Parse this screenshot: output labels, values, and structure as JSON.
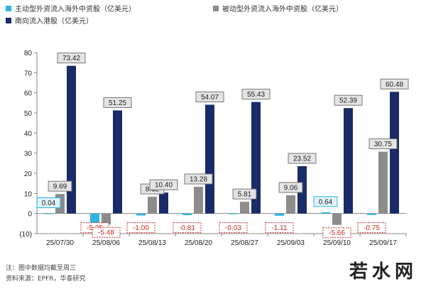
{
  "chart_data": {
    "type": "bar",
    "categories": [
      "25/07/30",
      "25/08/06",
      "25/08/13",
      "25/08/20",
      "25/08/27",
      "25/09/03",
      "25/09/10",
      "25/09/17"
    ],
    "series": [
      {
        "name": "主动型外资流入海外中资股（亿美元）",
        "color": "#29b6e6",
        "values": [
          0.04,
          -5.35,
          -1.0,
          -0.81,
          -0.03,
          -1.11,
          0.64,
          -0.75
        ]
      },
      {
        "name": "被动型外资流入海外中资股（亿美元）",
        "color": "#8c8c8c",
        "values": [
          9.69,
          -5.48,
          8.32,
          13.28,
          5.81,
          9.06,
          -5.66,
          30.75
        ]
      },
      {
        "name": "南向流入港股（亿美元）",
        "color": "#1a2b6b",
        "values": [
          73.42,
          51.25,
          10.4,
          54.07,
          55.43,
          23.52,
          52.39,
          60.48
        ]
      }
    ],
    "yticks": [
      "80",
      "70",
      "60",
      "50",
      "40",
      "30",
      "20",
      "10",
      "0",
      "(10)"
    ],
    "ylim": [
      -10,
      80
    ],
    "data_labels": [
      {
        "series": 0,
        "index": 0,
        "text": "0.04"
      },
      {
        "series": 1,
        "index": 0,
        "text": "9.69"
      },
      {
        "series": 2,
        "index": 0,
        "text": "73.42"
      },
      {
        "series": 0,
        "index": 1,
        "text": "-5.35"
      },
      {
        "series": 1,
        "index": 1,
        "text": "-5.48"
      },
      {
        "series": 2,
        "index": 1,
        "text": "51.25"
      },
      {
        "series": 0,
        "index": 2,
        "text": "-1.00"
      },
      {
        "series": 1,
        "index": 2,
        "text": "8.32"
      },
      {
        "series": 2,
        "index": 2,
        "text": "10.40"
      },
      {
        "series": 0,
        "index": 3,
        "text": "-0.81"
      },
      {
        "series": 1,
        "index": 3,
        "text": "13.28"
      },
      {
        "series": 2,
        "index": 3,
        "text": "54.07"
      },
      {
        "series": 0,
        "index": 4,
        "text": "-0.03"
      },
      {
        "series": 1,
        "index": 4,
        "text": "5.81"
      },
      {
        "series": 2,
        "index": 4,
        "text": "55.43"
      },
      {
        "series": 0,
        "index": 5,
        "text": "-1.11"
      },
      {
        "series": 1,
        "index": 5,
        "text": "9.06"
      },
      {
        "series": 2,
        "index": 5,
        "text": "23.52"
      },
      {
        "series": 0,
        "index": 6,
        "text": "0.64"
      },
      {
        "series": 1,
        "index": 6,
        "text": "-5.66"
      },
      {
        "series": 2,
        "index": 6,
        "text": "52.39"
      },
      {
        "series": 0,
        "index": 7,
        "text": "-0.75"
      },
      {
        "series": 1,
        "index": 7,
        "text": "30.75"
      },
      {
        "series": 2,
        "index": 7,
        "text": "60.48"
      }
    ],
    "legend_placement": "top-left",
    "grid": false
  },
  "notes": {
    "line1": "注：图中数据均截至周三",
    "line2": "资料来源：EPFR，华泰研究"
  },
  "watermark": "若水网"
}
